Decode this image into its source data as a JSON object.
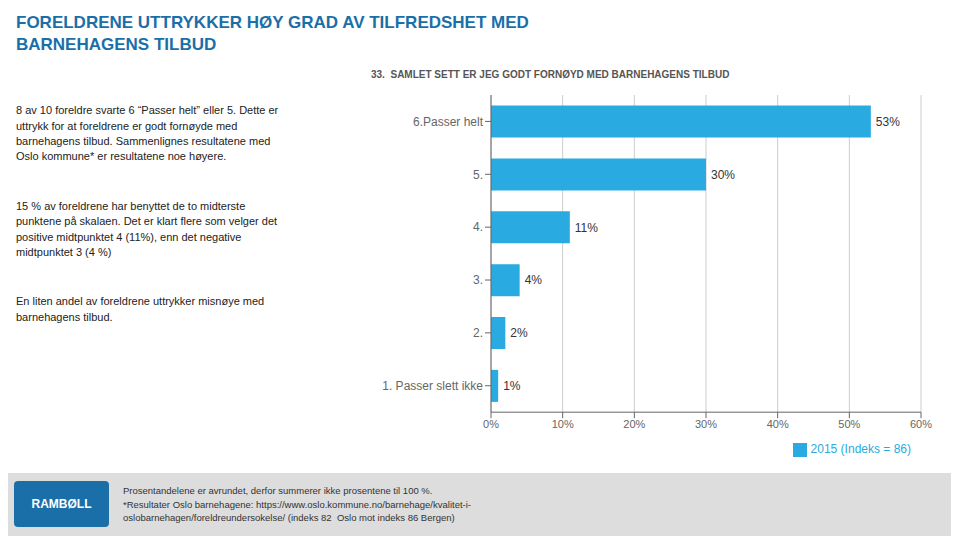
{
  "chart_data": {
    "type": "bar",
    "orientation": "horizontal",
    "title": "FORELDRENE UTTRYKKER HØY GRAD AV TILFREDSHET MED\nBARNEHAGENS TILBUD",
    "subtitle": "33.  SAMLET SETT ER JEG GODT FORNØYD MED BARNEHAGENS TILBUD",
    "categories": [
      "6.Passer helt",
      "5.",
      "4.",
      "3.",
      "2.",
      "1. Passer slett ikke"
    ],
    "series": [
      {
        "name": "2015 (Indeks = 86)",
        "color": "#29ABE2",
        "values": [
          53,
          30,
          11,
          4,
          2,
          1
        ],
        "value_labels": [
          "53%",
          "30%",
          "11%",
          "4%",
          "2%",
          "1%"
        ]
      }
    ],
    "data_labels": true,
    "xlim": [
      0,
      60
    ],
    "xticks": [
      {
        "value": 0,
        "label": "0%"
      },
      {
        "value": 10,
        "label": "10%"
      },
      {
        "value": 20,
        "label": "20%"
      },
      {
        "value": 30,
        "label": "30%"
      },
      {
        "value": 40,
        "label": "40%"
      },
      {
        "value": 50,
        "label": "50%"
      },
      {
        "value": 60,
        "label": "60%"
      }
    ],
    "grid": true,
    "legend": "lower right",
    "annotations": [
      "8 av 10 foreldre svarte 6 “Passer helt” eller 5. Dette er\nuttrykk for at foreldrene er godt fornøyde med\nbarnehagens tilbud. Sammenlignes resultatene med\nOslo kommune* er resultatene noe høyere.",
      "15 % av foreldrene har benyttet de to midterste\npunktene på skalaen. Det er klart flere som velger det\npositive midtpunktet 4 (11%), enn det negative\nmidtpunktet 3 (4 %)",
      "En liten andel av foreldrene uttrykker misnøye med\nbarnehagens tilbud.",
      "RAMBØLL",
      "Prosentandelene er avrundet, derfor summerer ikke prosentene til 100 %.\n*Resultater Oslo barnehagene: https://www.oslo.kommune.no/barnehage/kvalitet-i-\noslobarnehagen/foreldreundersokelse/ (indeks 82  Oslo mot indeks 86 Bergen)"
    ]
  }
}
